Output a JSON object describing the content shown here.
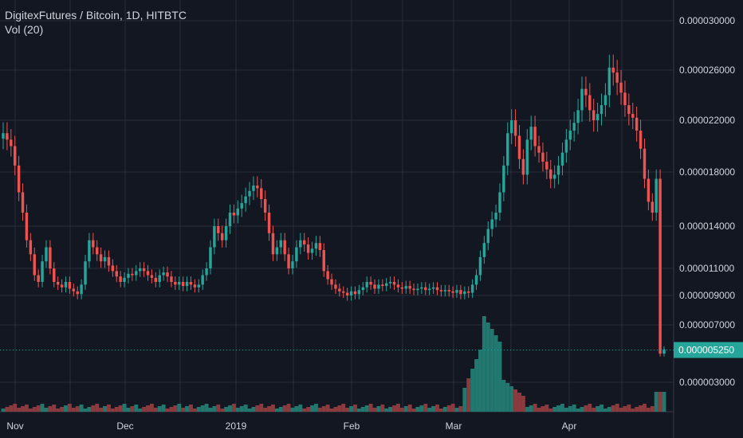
{
  "header": {
    "symbol_line": "DigitexFutures / Bitcoin, 1D, HITBTC",
    "indicator_line": "Vol (20)"
  },
  "colors": {
    "background": "#131722",
    "grid": "#2a2e39",
    "up": "#26a69a",
    "down": "#ef5350",
    "up_volume": "#22786f",
    "down_volume": "#8b3a3e",
    "last_price": "#26a69a",
    "text": "#d1d4dc"
  },
  "chart_data": {
    "type": "candlestick",
    "y_ticks": [
      "0.000030000",
      "0.000026000",
      "0.000022000",
      "0.000018000",
      "0.000014000",
      "0.000011000",
      "0.000009000",
      "0.000007000",
      "0.000003000"
    ],
    "y_tick_values": [
      3e-05,
      2.6e-05,
      2.2e-05,
      1.8e-05,
      1.4e-05,
      1.1e-05,
      9e-06,
      7e-06,
      3e-06
    ],
    "x_ticks": [
      "Nov",
      "Dec",
      "2019",
      "Feb",
      "Mar",
      "Apr"
    ],
    "last_price": "0.000005250",
    "last_price_value": 5.25e-06,
    "grid": true,
    "series": [
      {
        "name": "DigitexFutures / Bitcoin",
        "kind": "price",
        "ohlc_close_path": [
          2.1e-05,
          2.05e-05,
          2e-05,
          1.85e-05,
          1.65e-05,
          1.5e-05,
          1.3e-05,
          1.2e-05,
          1.05e-05,
          1e-05,
          1.15e-05,
          1.25e-05,
          1.1e-05,
          1e-05,
          9.8e-06,
          9.6e-06,
          1e-05,
          9.5e-06,
          9.3e-06,
          9.1e-06,
          9.8e-06,
          1.15e-05,
          1.3e-05,
          1.25e-05,
          1.2e-05,
          1.15e-05,
          1.18e-05,
          1.12e-05,
          1.08e-05,
          1.04e-05,
          1e-05,
          1.03e-05,
          1.06e-05,
          1.05e-05,
          1.08e-05,
          1.1e-05,
          1.08e-05,
          1.05e-05,
          1.03e-05,
          1e-05,
          1.05e-05,
          1.07e-05,
          1.04e-05,
          1e-05,
          9.8e-06,
          1e-05,
          9.7e-06,
          1e-05,
          9.8e-06,
          9.6e-06,
          9.8e-06,
          1.05e-05,
          1.1e-05,
          1.25e-05,
          1.4e-05,
          1.35e-05,
          1.3e-05,
          1.4e-05,
          1.5e-05,
          1.48e-05,
          1.53e-05,
          1.57e-05,
          1.62e-05,
          1.66e-05,
          1.7e-05,
          1.68e-05,
          1.6e-05,
          1.5e-05,
          1.35e-05,
          1.2e-05,
          1.25e-05,
          1.3e-05,
          1.2e-05,
          1.1e-05,
          1.15e-05,
          1.25e-05,
          1.3e-05,
          1.27e-05,
          1.21e-05,
          1.24e-05,
          1.28e-05,
          1.23e-05,
          1.08e-05,
          1.02e-05,
          9.8e-06,
          9.5e-06,
          9.3e-06,
          9.2e-06,
          9e-06,
          9.3e-06,
          9.1e-06,
          9.4e-06,
          9.6e-06,
          1e-05,
          9.8e-06,
          9.5e-06,
          9.8e-06,
          9.7e-06,
          9.9e-06,
          1e-05,
          9.8e-06,
          9.6e-06,
          9.5e-06,
          9.7e-06,
          9.5e-06,
          9.4e-06,
          9.5e-06,
          9.6e-06,
          9.4e-06,
          9.5e-06,
          9.6e-06,
          9.4e-06,
          9.3e-06,
          9.4e-06,
          9.3e-06,
          9.2e-06,
          9.4e-06,
          9.1e-06,
          9.3e-06,
          9.2e-06,
          9.8e-06,
          1.05e-05,
          1.18e-05,
          1.28e-05,
          1.38e-05,
          1.45e-05,
          1.5e-05,
          1.65e-05,
          1.85e-05,
          2.1e-05,
          2.2e-05,
          2.08e-05,
          1.9e-05,
          1.78e-05,
          2.05e-05,
          2.15e-05,
          2e-05,
          1.95e-05,
          1.88e-05,
          1.82e-05,
          1.75e-05,
          1.78e-05,
          1.85e-05,
          1.95e-05,
          2.05e-05,
          2.12e-05,
          2.18e-05,
          2.28e-05,
          2.45e-05,
          2.4e-05,
          2.28e-05,
          2.2e-05,
          2.25e-05,
          2.32e-05,
          2.4e-05,
          2.62e-05,
          2.58e-05,
          2.5e-05,
          2.42e-05,
          2.32e-05,
          2.25e-05,
          2.22e-05,
          2.12e-05,
          1.98e-05,
          1.75e-05,
          1.58e-05,
          1.5e-05,
          1.75e-05,
          5e-06,
          5.3e-06
        ]
      }
    ]
  }
}
